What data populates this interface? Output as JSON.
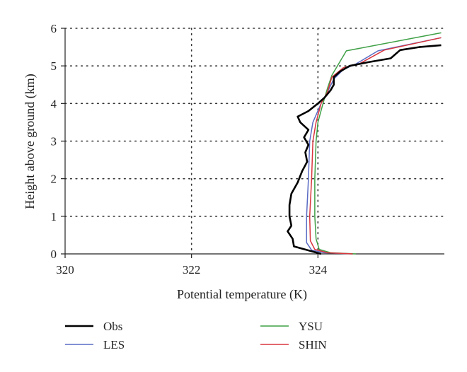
{
  "chart_data": {
    "type": "line",
    "title": "",
    "xlabel": "Potential temperature (K)",
    "ylabel": "Height above ground (km)",
    "xlim": [
      320,
      326
    ],
    "ylim": [
      0,
      6
    ],
    "xticks": [
      320,
      322,
      324
    ],
    "yticks": [
      0,
      1,
      2,
      3,
      4,
      5,
      6
    ],
    "grid": true,
    "legend_position": "bottom",
    "series": [
      {
        "name": "Obs",
        "color": "#000000",
        "points": [
          [
            324.05,
            0.0
          ],
          [
            323.62,
            0.2
          ],
          [
            323.6,
            0.4
          ],
          [
            323.52,
            0.6
          ],
          [
            323.58,
            0.75
          ],
          [
            323.55,
            1.0
          ],
          [
            323.55,
            1.3
          ],
          [
            323.58,
            1.6
          ],
          [
            323.68,
            1.9
          ],
          [
            323.75,
            2.2
          ],
          [
            323.83,
            2.45
          ],
          [
            323.8,
            2.7
          ],
          [
            323.85,
            2.9
          ],
          [
            323.78,
            3.1
          ],
          [
            323.85,
            3.3
          ],
          [
            323.72,
            3.5
          ],
          [
            323.68,
            3.65
          ],
          [
            323.85,
            3.8
          ],
          [
            324.0,
            4.0
          ],
          [
            324.1,
            4.15
          ],
          [
            324.2,
            4.35
          ],
          [
            324.25,
            4.5
          ],
          [
            324.25,
            4.7
          ],
          [
            324.35,
            4.85
          ],
          [
            324.5,
            5.0
          ],
          [
            324.8,
            5.1
          ],
          [
            325.15,
            5.2
          ],
          [
            325.3,
            5.42
          ],
          [
            325.6,
            5.5
          ],
          [
            325.95,
            5.55
          ]
        ]
      },
      {
        "name": "LES",
        "color": "#5a6bc4",
        "points": [
          [
            324.55,
            0.0
          ],
          [
            324.1,
            0.03
          ],
          [
            323.9,
            0.1
          ],
          [
            323.82,
            0.3
          ],
          [
            323.82,
            1.0
          ],
          [
            323.85,
            2.0
          ],
          [
            323.87,
            3.0
          ],
          [
            323.92,
            3.5
          ],
          [
            324.05,
            4.0
          ],
          [
            324.15,
            4.3
          ],
          [
            324.25,
            4.65
          ],
          [
            324.4,
            4.9
          ],
          [
            324.6,
            5.05
          ],
          [
            324.95,
            5.4
          ],
          [
            325.95,
            5.75
          ]
        ]
      },
      {
        "name": "YSU",
        "color": "#3fa046",
        "points": [
          [
            324.6,
            0.0
          ],
          [
            324.2,
            0.03
          ],
          [
            324.02,
            0.12
          ],
          [
            323.97,
            0.4
          ],
          [
            323.95,
            1.0
          ],
          [
            323.95,
            2.0
          ],
          [
            323.97,
            3.0
          ],
          [
            324.0,
            3.5
          ],
          [
            324.08,
            4.0
          ],
          [
            324.15,
            4.4
          ],
          [
            324.22,
            4.75
          ],
          [
            324.45,
            5.4
          ],
          [
            325.95,
            5.88
          ]
        ]
      },
      {
        "name": "SHIN",
        "color": "#d9363e",
        "points": [
          [
            324.55,
            0.0
          ],
          [
            324.15,
            0.03
          ],
          [
            323.95,
            0.12
          ],
          [
            323.88,
            0.35
          ],
          [
            323.87,
            1.0
          ],
          [
            323.9,
            2.0
          ],
          [
            323.92,
            3.0
          ],
          [
            323.97,
            3.5
          ],
          [
            324.05,
            4.0
          ],
          [
            324.15,
            4.3
          ],
          [
            324.22,
            4.7
          ],
          [
            324.4,
            4.95
          ],
          [
            324.65,
            5.05
          ],
          [
            325.05,
            5.42
          ],
          [
            325.95,
            5.75
          ]
        ]
      }
    ]
  }
}
